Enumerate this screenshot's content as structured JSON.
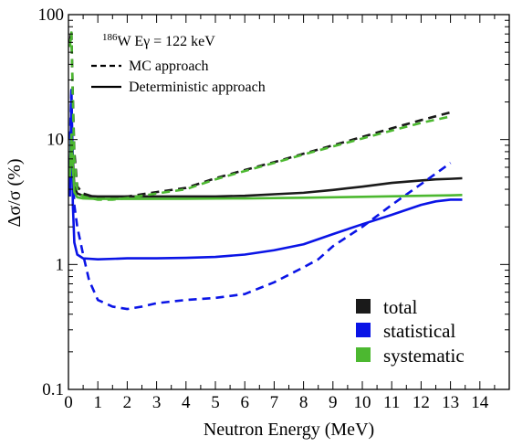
{
  "chart_data": {
    "type": "line",
    "xlabel": "Neutron Energy (MeV)",
    "ylabel": "Δσ/σ (%)",
    "xlim": [
      0,
      15
    ],
    "ylim": [
      0.1,
      100
    ],
    "yscale": "log",
    "x_ticks": [
      "0",
      "1",
      "2",
      "3",
      "4",
      "5",
      "6",
      "7",
      "8",
      "9",
      "10",
      "11",
      "12",
      "13",
      "14"
    ],
    "y_ticks": [
      {
        "value": 0.1,
        "label": "0.1"
      },
      {
        "value": 1,
        "label": "1"
      },
      {
        "value": 10,
        "label": "10"
      },
      {
        "value": 100,
        "label": "100"
      }
    ],
    "annotation": {
      "isotope_sup": "186",
      "isotope": "W Eγ = 122 keV",
      "style_lines": [
        {
          "label": "MC approach",
          "dash": true
        },
        {
          "label": "Deterministic approach",
          "dash": false
        }
      ]
    },
    "legend": {
      "position": "bottom-right",
      "entries": [
        {
          "name": "total",
          "color": "#1a1a1a"
        },
        {
          "name": "statistical",
          "color": "#0a14e6"
        },
        {
          "name": "systematic",
          "color": "#4cb830"
        }
      ]
    },
    "series": [
      {
        "name": "total",
        "approach": "deterministic",
        "color": "#1a1a1a",
        "dash": false,
        "x": [
          0.05,
          0.1,
          0.15,
          0.2,
          0.3,
          0.5,
          1,
          2,
          3,
          4,
          5,
          6,
          7,
          8,
          9,
          10,
          11,
          12,
          12.5,
          13,
          13.4
        ],
        "y": [
          6.0,
          12.0,
          7.0,
          4.2,
          3.7,
          3.55,
          3.5,
          3.5,
          3.5,
          3.5,
          3.5,
          3.55,
          3.65,
          3.75,
          3.95,
          4.2,
          4.5,
          4.7,
          4.8,
          4.85,
          4.9
        ]
      },
      {
        "name": "total",
        "approach": "MC",
        "color": "#1a1a1a",
        "dash": true,
        "x": [
          0.05,
          0.1,
          0.15,
          0.2,
          0.3,
          0.5,
          1,
          1.5,
          2,
          3,
          4,
          5,
          6,
          7,
          8,
          9,
          10,
          11,
          12,
          13
        ],
        "y": [
          60,
          75,
          22,
          8,
          4.2,
          3.7,
          3.4,
          3.4,
          3.5,
          3.8,
          4.1,
          4.9,
          5.7,
          6.6,
          7.7,
          9.0,
          10.5,
          12.3,
          14.3,
          16.5
        ]
      },
      {
        "name": "statistical",
        "approach": "deterministic",
        "color": "#0a14e6",
        "dash": false,
        "x": [
          0.05,
          0.1,
          0.15,
          0.2,
          0.3,
          0.5,
          1,
          2,
          3,
          4,
          5,
          6,
          7,
          8,
          9,
          10,
          11,
          12,
          12.5,
          13,
          13.4
        ],
        "y": [
          3.5,
          25,
          3.0,
          1.5,
          1.2,
          1.12,
          1.1,
          1.12,
          1.12,
          1.13,
          1.15,
          1.2,
          1.3,
          1.45,
          1.75,
          2.1,
          2.5,
          3.0,
          3.2,
          3.3,
          3.3
        ]
      },
      {
        "name": "statistical",
        "approach": "MC",
        "color": "#0a14e6",
        "dash": true,
        "x": [
          0.05,
          0.1,
          0.15,
          0.2,
          0.3,
          0.5,
          0.7,
          1,
          1.5,
          2,
          2.5,
          3,
          4,
          5,
          6,
          7,
          8,
          8.5,
          9,
          10,
          11,
          12,
          13
        ],
        "y": [
          10,
          25,
          6,
          3,
          2.0,
          1.2,
          0.75,
          0.52,
          0.46,
          0.44,
          0.46,
          0.49,
          0.52,
          0.54,
          0.58,
          0.72,
          0.95,
          1.1,
          1.4,
          2.0,
          3.0,
          4.4,
          6.5
        ]
      },
      {
        "name": "systematic",
        "approach": "deterministic",
        "color": "#4cb830",
        "dash": false,
        "x": [
          0.05,
          0.1,
          0.15,
          0.2,
          0.3,
          0.5,
          1,
          2,
          4,
          6,
          8,
          10,
          12,
          13,
          13.4
        ],
        "y": [
          5.0,
          11.0,
          6.0,
          3.8,
          3.45,
          3.38,
          3.35,
          3.35,
          3.36,
          3.38,
          3.42,
          3.48,
          3.55,
          3.58,
          3.6
        ]
      },
      {
        "name": "systematic",
        "approach": "MC",
        "color": "#4cb830",
        "dash": true,
        "x": [
          0.05,
          0.1,
          0.15,
          0.2,
          0.3,
          0.5,
          1,
          1.5,
          2,
          3,
          4,
          5,
          6,
          7,
          8,
          9,
          10,
          11,
          12,
          13
        ],
        "y": [
          55,
          72,
          20,
          7,
          4.0,
          3.5,
          3.3,
          3.3,
          3.4,
          3.7,
          4.0,
          4.8,
          5.6,
          6.5,
          7.6,
          8.8,
          10.2,
          11.8,
          13.6,
          15.3
        ]
      }
    ]
  }
}
